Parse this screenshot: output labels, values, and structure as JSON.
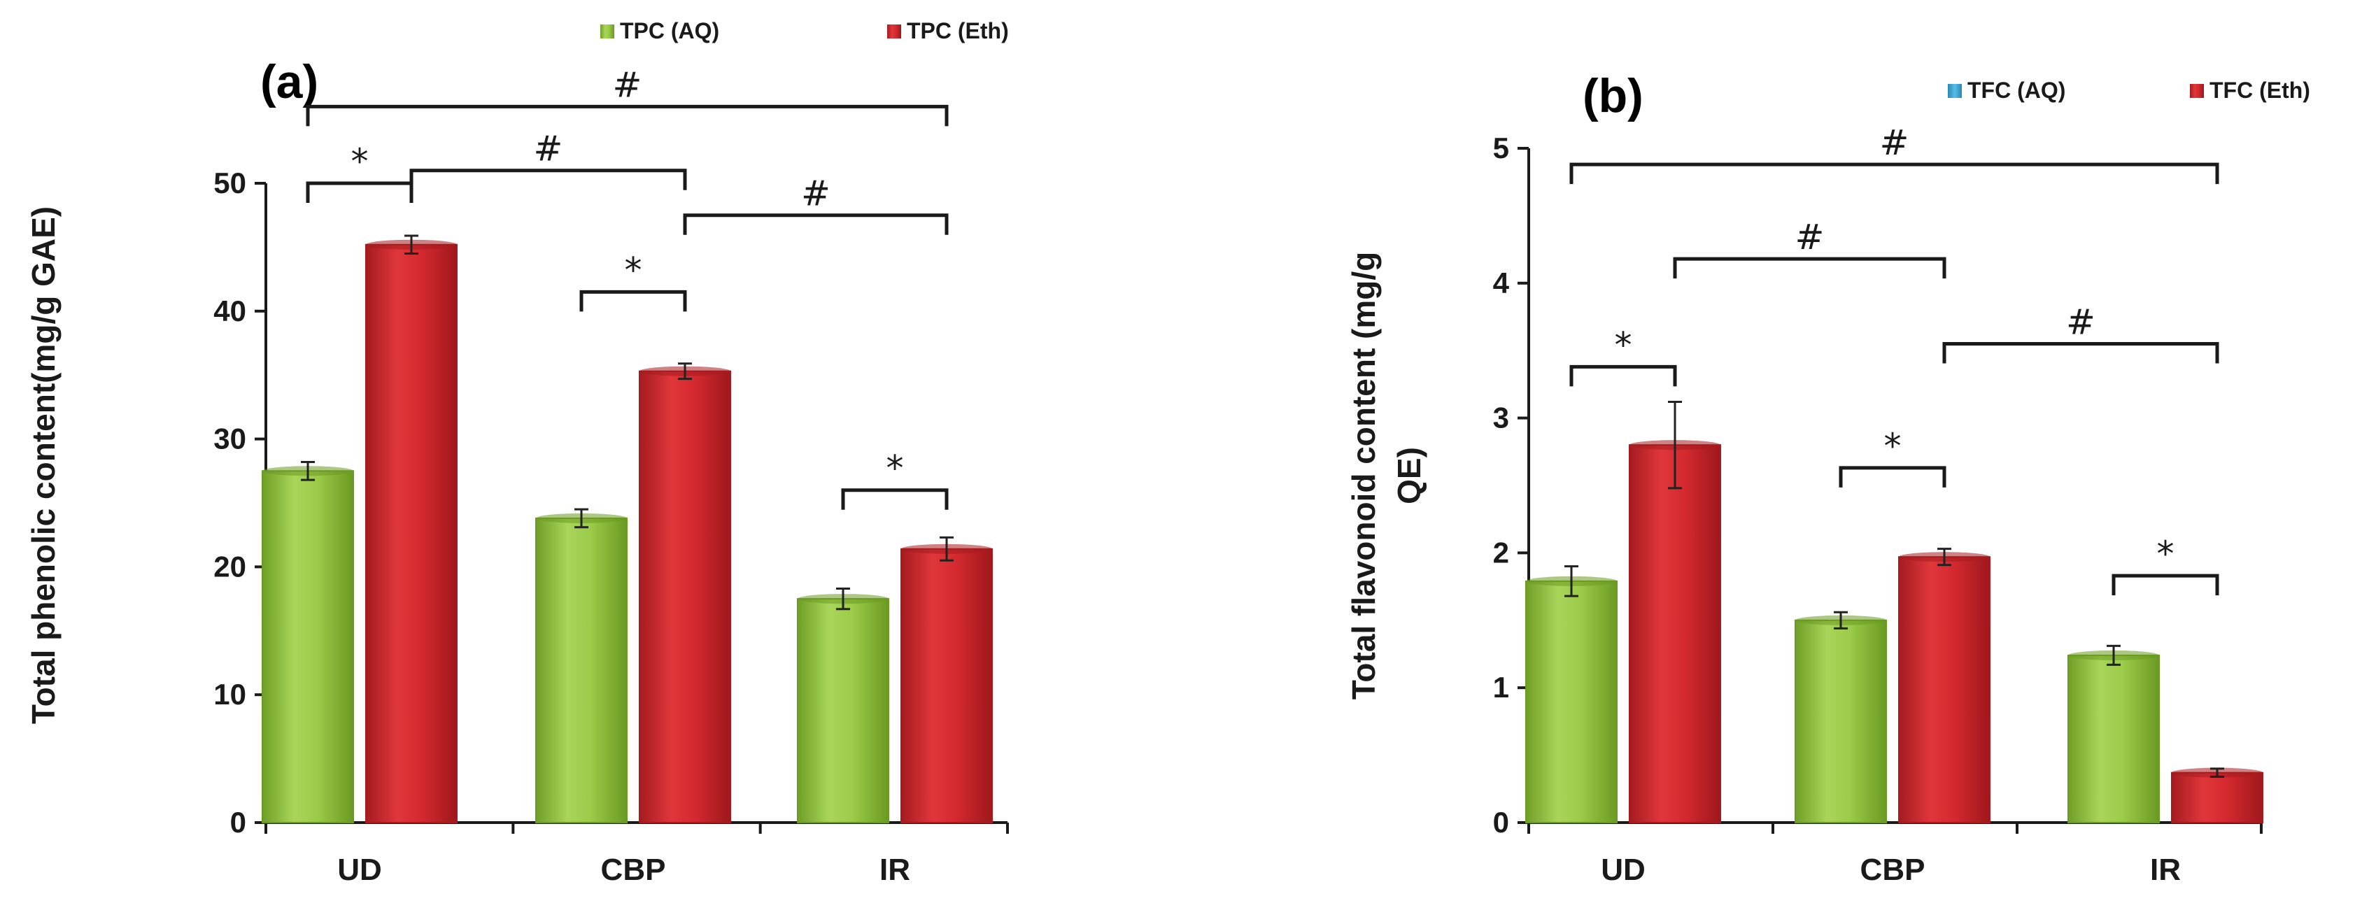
{
  "colors": {
    "green": "#8dc63f",
    "green_dark": "#6a9a22",
    "red": "#d7262c",
    "red_dark": "#a51b1f",
    "blue": "#3aa6d8"
  },
  "chart_data": [
    {
      "type": "bar",
      "panel_label": "(a)",
      "categories": [
        "UD",
        "CBP",
        "IR"
      ],
      "series": [
        {
          "name": "TPC (AQ)",
          "values": [
            27.5,
            23.8,
            17.5
          ],
          "errors": [
            0.7,
            0.7,
            0.8
          ],
          "color": "green",
          "legend_color": "green"
        },
        {
          "name": "TPC (Eth)",
          "values": [
            45.2,
            35.3,
            21.4
          ],
          "errors": [
            0.7,
            0.6,
            0.9
          ],
          "color": "red",
          "legend_color": "red"
        }
      ],
      "ylabel": "Total phenolic content(mg/g GAE)",
      "ylim": [
        0,
        50
      ],
      "yticks": [
        "0",
        "10",
        "20",
        "30",
        "40",
        "50"
      ],
      "ytick_values": [
        0,
        10,
        20,
        30,
        40,
        50
      ],
      "significance": [
        {
          "symbol": "*",
          "from": [
            0,
            0
          ],
          "to": [
            0,
            1
          ],
          "level": 50
        },
        {
          "symbol": "*",
          "from": [
            1,
            0
          ],
          "to": [
            1,
            1
          ],
          "level": 41.5
        },
        {
          "symbol": "*",
          "from": [
            2,
            0
          ],
          "to": [
            2,
            1
          ],
          "level": 26
        },
        {
          "symbol": "#",
          "from": [
            0,
            1
          ],
          "to": [
            1,
            1
          ],
          "level": 51
        },
        {
          "symbol": "#",
          "from": [
            1,
            1
          ],
          "to": [
            2,
            1
          ],
          "level": 47.5
        },
        {
          "symbol": "#",
          "from": [
            0,
            0
          ],
          "to": [
            2,
            1
          ],
          "level": 56
        }
      ]
    },
    {
      "type": "bar",
      "panel_label": "(b)",
      "categories": [
        "UD",
        "CBP",
        "IR"
      ],
      "series": [
        {
          "name": "TFC (AQ)",
          "values": [
            1.79,
            1.5,
            1.24
          ],
          "errors": [
            0.11,
            0.06,
            0.07
          ],
          "color": "green",
          "legend_color": "blue"
        },
        {
          "name": "TFC (Eth)",
          "values": [
            2.8,
            1.97,
            0.37
          ],
          "errors": [
            0.32,
            0.06,
            0.03
          ],
          "color": "red",
          "legend_color": "red"
        }
      ],
      "ylabel": "Total flavonoid content (mg/g QE)",
      "ylabel_lines": [
        "Total flavonoid content (mg/g",
        "QE)"
      ],
      "ylim": [
        0,
        5
      ],
      "yticks": [
        "0",
        "1",
        "2",
        "3",
        "4",
        "5"
      ],
      "ytick_values": [
        0,
        1,
        2,
        3,
        4,
        5
      ],
      "significance": [
        {
          "symbol": "*",
          "from": [
            0,
            0
          ],
          "to": [
            0,
            1
          ],
          "level": 3.38
        },
        {
          "symbol": "*",
          "from": [
            1,
            0
          ],
          "to": [
            1,
            1
          ],
          "level": 2.63
        },
        {
          "symbol": "*",
          "from": [
            2,
            0
          ],
          "to": [
            2,
            1
          ],
          "level": 1.83
        },
        {
          "symbol": "#",
          "from": [
            0,
            1
          ],
          "to": [
            1,
            1
          ],
          "level": 4.18
        },
        {
          "symbol": "#",
          "from": [
            1,
            1
          ],
          "to": [
            2,
            1
          ],
          "level": 3.55
        },
        {
          "symbol": "#",
          "from": [
            0,
            0
          ],
          "to": [
            2,
            1
          ],
          "level": 4.88
        }
      ]
    }
  ]
}
